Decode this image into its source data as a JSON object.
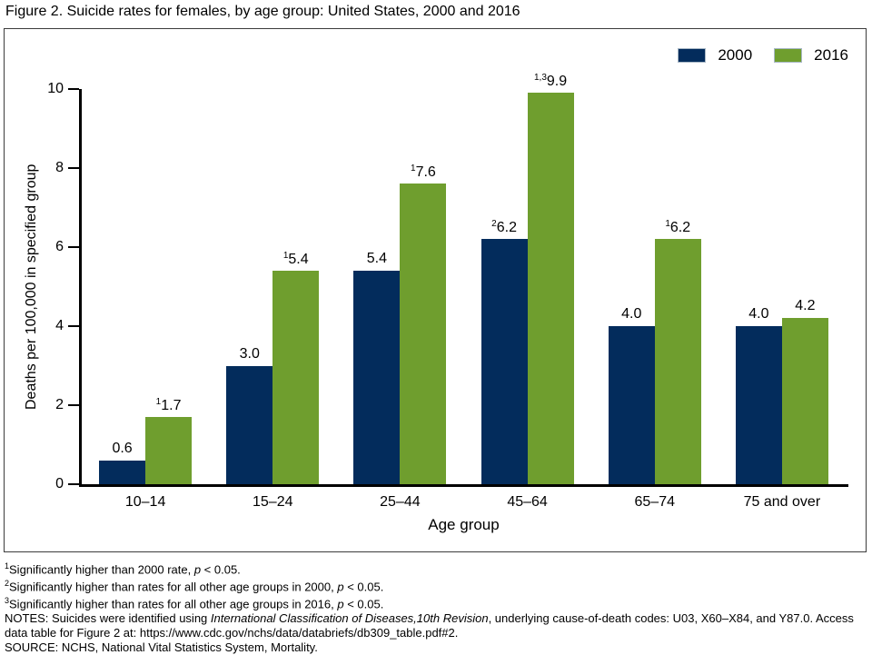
{
  "title": "Figure 2. Suicide rates for females, by age group: United States, 2000 and 2016",
  "chart_data": {
    "type": "bar",
    "title": "Figure 2. Suicide rates for females, by age group: United States, 2000 and 2016",
    "categories": [
      "10–14",
      "15–24",
      "25–44",
      "45–64",
      "65–74",
      "75 and over"
    ],
    "series": [
      {
        "name": "2000",
        "color": "#032c5c",
        "values": [
          0.6,
          3.0,
          5.4,
          6.2,
          4.0,
          4.0
        ],
        "value_labels": [
          "0.6",
          "3.0",
          "5.4",
          "6.2",
          "4.0",
          "4.0"
        ],
        "label_superscripts": [
          "",
          "",
          "",
          "2",
          "",
          ""
        ]
      },
      {
        "name": "2016",
        "color": "#6f9e2e",
        "values": [
          1.7,
          5.4,
          7.6,
          9.9,
          6.2,
          4.2
        ],
        "value_labels": [
          "1.7",
          "5.4",
          "7.6",
          "9.9",
          "6.2",
          "4.2"
        ],
        "label_superscripts": [
          "1",
          "1",
          "1",
          "1,3",
          "1",
          ""
        ]
      }
    ],
    "xlabel": "Age group",
    "ylabel": "Deaths per 100,000 in specified group",
    "ylim": [
      0,
      10
    ],
    "yticks": [
      0,
      2,
      4,
      6,
      8,
      10
    ],
    "grid": false,
    "legend_position": "top-right"
  },
  "legend": {
    "items": [
      {
        "label": "2000",
        "color": "#032c5c"
      },
      {
        "label": "2016",
        "color": "#6f9e2e"
      }
    ]
  },
  "footnotes": [
    {
      "sup": "1",
      "segments": [
        {
          "text": "Significantly higher than 2000 rate, "
        },
        {
          "text": "p",
          "italic": true
        },
        {
          "text": " < 0.05."
        }
      ]
    },
    {
      "sup": "2",
      "segments": [
        {
          "text": "Significantly higher than rates for all other age groups in 2000, "
        },
        {
          "text": "p",
          "italic": true
        },
        {
          "text": " < 0.05."
        }
      ]
    },
    {
      "sup": "3",
      "segments": [
        {
          "text": "Significantly higher than rates for all other age groups in 2016, "
        },
        {
          "text": "p",
          "italic": true
        },
        {
          "text": " < 0.05."
        }
      ]
    },
    {
      "sup": "",
      "segments": [
        {
          "text": "NOTES: Suicides were identified using "
        },
        {
          "text": "International Classification of Diseases,10th Revision",
          "italic": true
        },
        {
          "text": ", underlying cause-of-death codes: U03, X60–X84, and Y87.0. Access data table for Figure 2 at: https://www.cdc.gov/nchs/data/databriefs/db309_table.pdf#2."
        }
      ]
    },
    {
      "sup": "",
      "segments": [
        {
          "text": "SOURCE: NCHS, National Vital Statistics System, Mortality."
        }
      ]
    }
  ]
}
